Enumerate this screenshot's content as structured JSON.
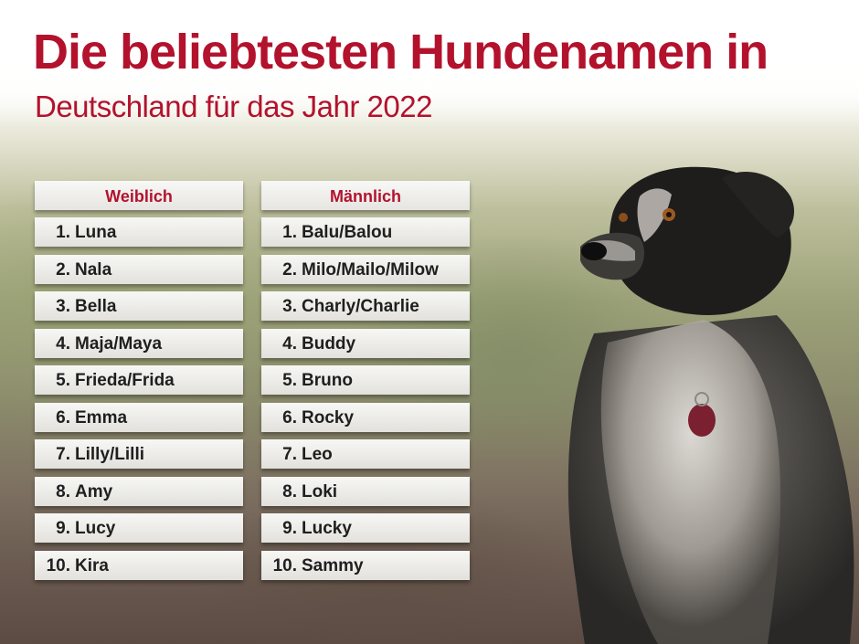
{
  "title": "Die beliebtesten Hundenamen in",
  "subtitle": "Deutschland für das Jahr 2022",
  "female": {
    "header": "Weiblich",
    "items": [
      {
        "rank": "1.",
        "name": "Luna"
      },
      {
        "rank": "2.",
        "name": "Nala"
      },
      {
        "rank": "3.",
        "name": "Bella"
      },
      {
        "rank": "4.",
        "name": "Maja/Maya"
      },
      {
        "rank": "5.",
        "name": "Frieda/Frida"
      },
      {
        "rank": "6.",
        "name": "Emma"
      },
      {
        "rank": "7.",
        "name": "Lilly/Lilli"
      },
      {
        "rank": "8.",
        "name": "Amy"
      },
      {
        "rank": "9.",
        "name": "Lucy"
      },
      {
        "rank": "10.",
        "name": "Kira"
      }
    ]
  },
  "male": {
    "header": "Männlich",
    "items": [
      {
        "rank": "1.",
        "name": "Balu/Balou"
      },
      {
        "rank": "2.",
        "name": "Milo/Mailo/Milow"
      },
      {
        "rank": "3.",
        "name": "Charly/Charlie"
      },
      {
        "rank": "4.",
        "name": "Buddy"
      },
      {
        "rank": "5.",
        "name": "Bruno"
      },
      {
        "rank": "6.",
        "name": "Rocky"
      },
      {
        "rank": "7.",
        "name": "Leo"
      },
      {
        "rank": "8.",
        "name": "Loki"
      },
      {
        "rank": "9.",
        "name": "Lucky"
      },
      {
        "rank": "10.",
        "name": "Sammy"
      }
    ]
  },
  "colors": {
    "accent": "#b3122d",
    "text": "#1f1f1f",
    "card": "#f2f1ee"
  },
  "image": {
    "subject": "dog-photo"
  }
}
